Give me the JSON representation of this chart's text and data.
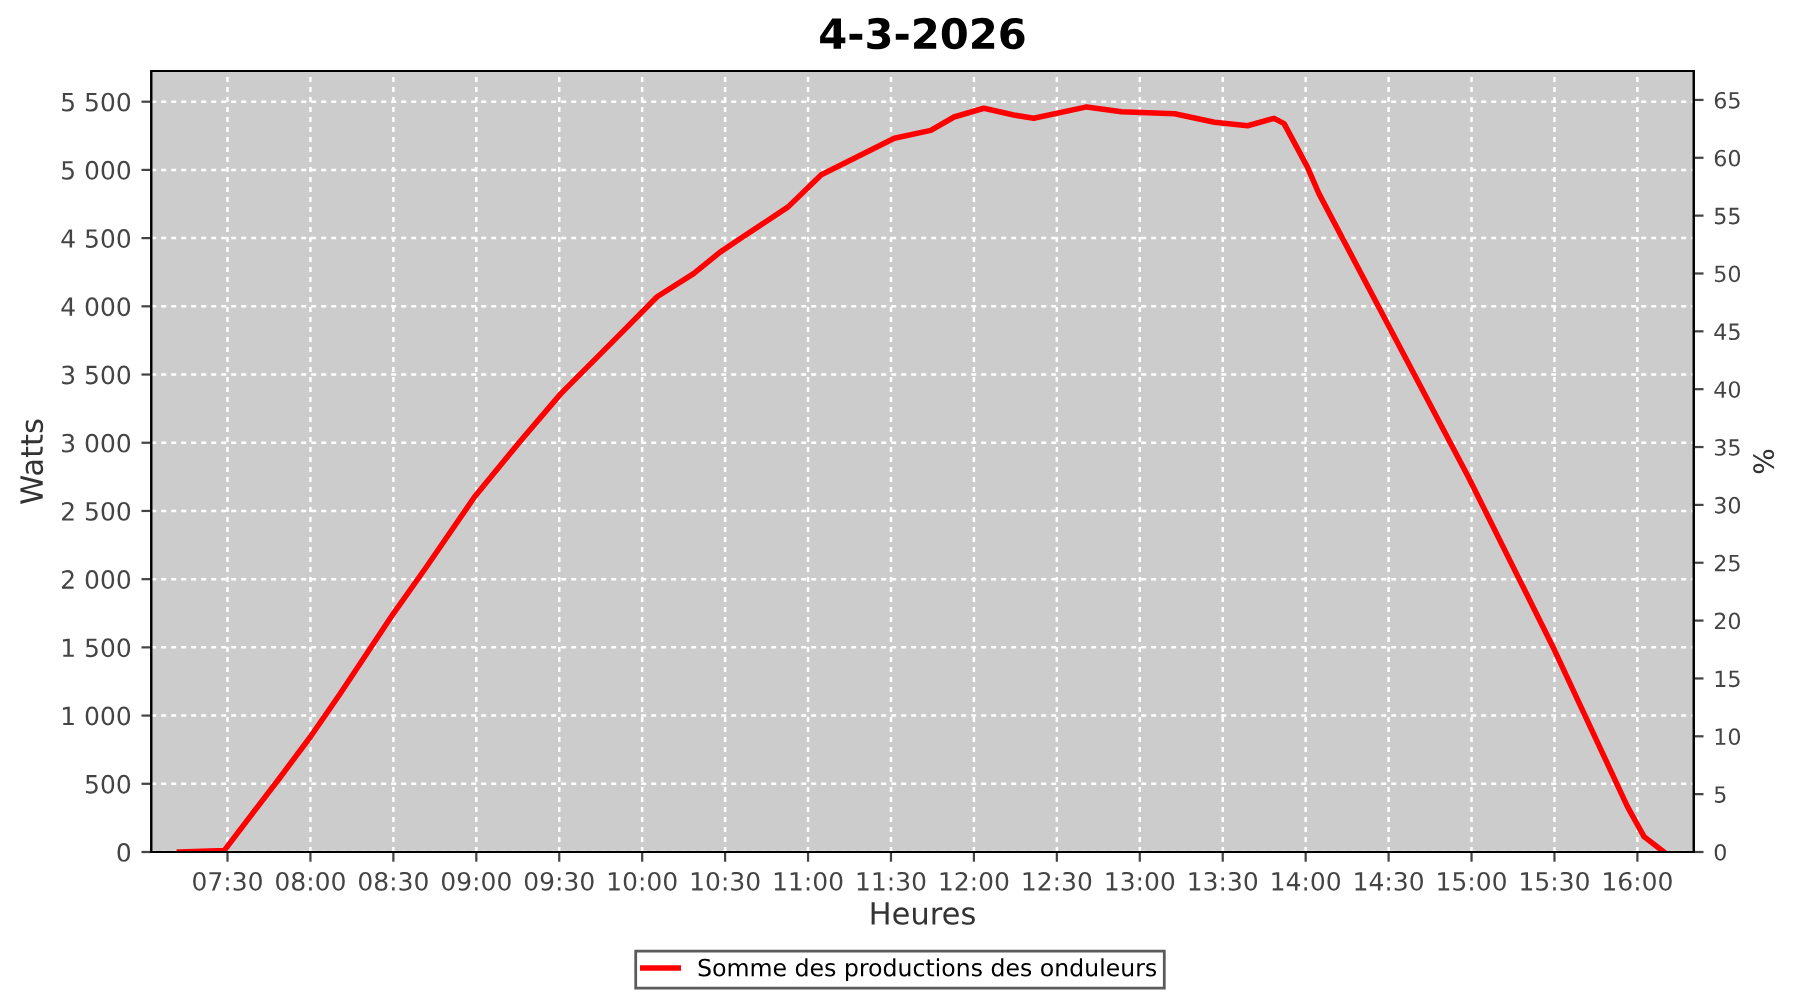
{
  "chart_data": {
    "type": "line",
    "title": "4-3-2026",
    "xlabel": "Heures",
    "ylabel": "Watts",
    "y2label": "%",
    "x": [
      7.21,
      7.48,
      7.62,
      7.82,
      8.0,
      8.18,
      8.5,
      8.7,
      8.99,
      9.27,
      9.51,
      9.87,
      10.09,
      10.31,
      10.47,
      10.59,
      10.88,
      11.08,
      11.52,
      11.74,
      11.88,
      12.06,
      12.24,
      12.36,
      12.68,
      12.89,
      13.21,
      13.45,
      13.65,
      13.81,
      13.87,
      14.01,
      14.08,
      14.98,
      15.5,
      15.94,
      16.04,
      16.16
    ],
    "series": [
      {
        "name": "Somme des productions des onduleurs",
        "color": "#ff0000",
        "values": [
          0,
          10,
          234,
          552,
          845,
          1162,
          1748,
          2091,
          2604,
          3019,
          3360,
          3800,
          4070,
          4240,
          4397,
          4495,
          4729,
          4964,
          5232,
          5290,
          5388,
          5452,
          5403,
          5378,
          5462,
          5427,
          5412,
          5349,
          5324,
          5378,
          5339,
          5022,
          4826,
          2751,
          1480,
          333,
          113,
          0
        ]
      }
    ],
    "xlim": [
      7.04,
      16.34
    ],
    "xticks": [
      {
        "value": 7.5,
        "label": "07:30"
      },
      {
        "value": 8,
        "label": "08:00"
      },
      {
        "value": 8.5,
        "label": "08:30"
      },
      {
        "value": 9,
        "label": "09:00"
      },
      {
        "value": 9.5,
        "label": "09:30"
      },
      {
        "value": 10,
        "label": "10:00"
      },
      {
        "value": 10.5,
        "label": "10:30"
      },
      {
        "value": 11,
        "label": "11:00"
      },
      {
        "value": 11.5,
        "label": "11:30"
      },
      {
        "value": 12,
        "label": "12:00"
      },
      {
        "value": 12.5,
        "label": "12:30"
      },
      {
        "value": 13,
        "label": "13:00"
      },
      {
        "value": 13.5,
        "label": "13:30"
      },
      {
        "value": 14,
        "label": "14:00"
      },
      {
        "value": 14.5,
        "label": "14:30"
      },
      {
        "value": 15,
        "label": "15:00"
      },
      {
        "value": 15.5,
        "label": "15:30"
      },
      {
        "value": 16,
        "label": "16:00"
      }
    ],
    "ylim": [
      0,
      5725
    ],
    "yticks": [
      0,
      500,
      {
        "value": 1000,
        "label": "1 000"
      },
      {
        "value": 1500,
        "label": "1 500"
      },
      {
        "value": 2000,
        "label": "2 000"
      },
      {
        "value": 2500,
        "label": "2 500"
      },
      {
        "value": 3000,
        "label": "3 000"
      },
      {
        "value": 3500,
        "label": "3 500"
      },
      {
        "value": 4000,
        "label": "4 000"
      },
      {
        "value": 4500,
        "label": "4 500"
      },
      {
        "value": 5000,
        "label": "5 000"
      },
      {
        "value": 5500,
        "label": "5 500"
      }
    ],
    "y2lim": [
      0,
      67.5
    ],
    "y2ticks": [
      0,
      5,
      10,
      15,
      20,
      25,
      30,
      35,
      40,
      45,
      50,
      55,
      60,
      65
    ],
    "grid": true,
    "legend": "bottom",
    "marker": "none",
    "line_style": "solid"
  }
}
